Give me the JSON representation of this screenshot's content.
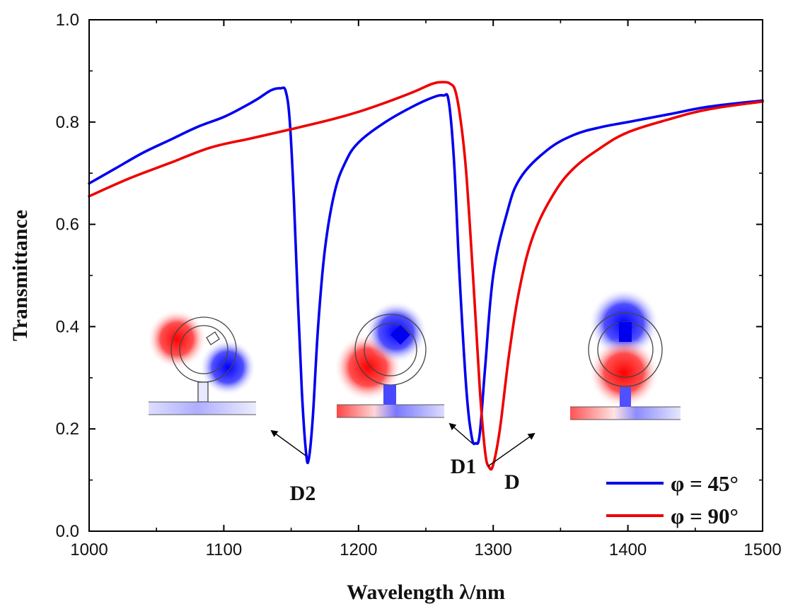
{
  "chart_data": {
    "type": "line",
    "title": "",
    "xlabel": "Wavelength λ/nm",
    "ylabel": "Transmittance",
    "xlim": [
      1000,
      1500
    ],
    "ylim": [
      0.0,
      1.0
    ],
    "xticks": [
      1000,
      1100,
      1200,
      1300,
      1400,
      1500
    ],
    "xtick_labels": [
      "1000",
      "1100",
      "1200",
      "1300",
      "1400",
      "1500"
    ],
    "yticks": [
      0.0,
      0.2,
      0.4,
      0.6,
      0.8,
      1.0
    ],
    "ytick_labels": [
      "0.0",
      "0.2",
      "0.4",
      "0.6",
      "0.8",
      "1.0"
    ],
    "legend_position": "bottom-right",
    "series": [
      {
        "name": "φ = 45°",
        "color": "#0000ee",
        "x": [
          1000,
          1020,
          1040,
          1060,
          1080,
          1100,
          1115,
          1125,
          1135,
          1142,
          1146,
          1149,
          1152,
          1155,
          1158,
          1161,
          1163,
          1166,
          1170,
          1175,
          1182,
          1190,
          1200,
          1220,
          1240,
          1255,
          1263,
          1267,
          1271,
          1275,
          1280,
          1284,
          1287,
          1290,
          1294,
          1300,
          1310,
          1320,
          1340,
          1360,
          1380,
          1400,
          1430,
          1460,
          1500
        ],
        "y": [
          0.68,
          0.71,
          0.74,
          0.765,
          0.79,
          0.81,
          0.83,
          0.845,
          0.862,
          0.866,
          0.86,
          0.8,
          0.65,
          0.45,
          0.27,
          0.155,
          0.14,
          0.22,
          0.4,
          0.55,
          0.66,
          0.72,
          0.76,
          0.8,
          0.83,
          0.848,
          0.852,
          0.84,
          0.72,
          0.5,
          0.28,
          0.185,
          0.172,
          0.19,
          0.32,
          0.5,
          0.62,
          0.69,
          0.745,
          0.775,
          0.79,
          0.8,
          0.815,
          0.83,
          0.842
        ]
      },
      {
        "name": "φ = 90°",
        "color": "#ee0000",
        "x": [
          1000,
          1030,
          1060,
          1090,
          1120,
          1150,
          1180,
          1200,
          1220,
          1240,
          1255,
          1263,
          1268,
          1272,
          1276,
          1280,
          1285,
          1290,
          1294,
          1297,
          1300,
          1305,
          1312,
          1320,
          1330,
          1345,
          1360,
          1380,
          1400,
          1430,
          1460,
          1500
        ],
        "y": [
          0.655,
          0.69,
          0.72,
          0.75,
          0.768,
          0.786,
          0.805,
          0.82,
          0.838,
          0.858,
          0.875,
          0.878,
          0.875,
          0.86,
          0.8,
          0.7,
          0.5,
          0.28,
          0.155,
          0.125,
          0.13,
          0.2,
          0.35,
          0.48,
          0.58,
          0.66,
          0.71,
          0.75,
          0.78,
          0.805,
          0.825,
          0.84
        ]
      }
    ],
    "annotations": [
      {
        "label": "D2",
        "x": 1163,
        "y": 0.14
      },
      {
        "label": "D1",
        "x": 1287,
        "y": 0.172
      },
      {
        "label": "D",
        "x": 1297,
        "y": 0.125
      }
    ]
  }
}
